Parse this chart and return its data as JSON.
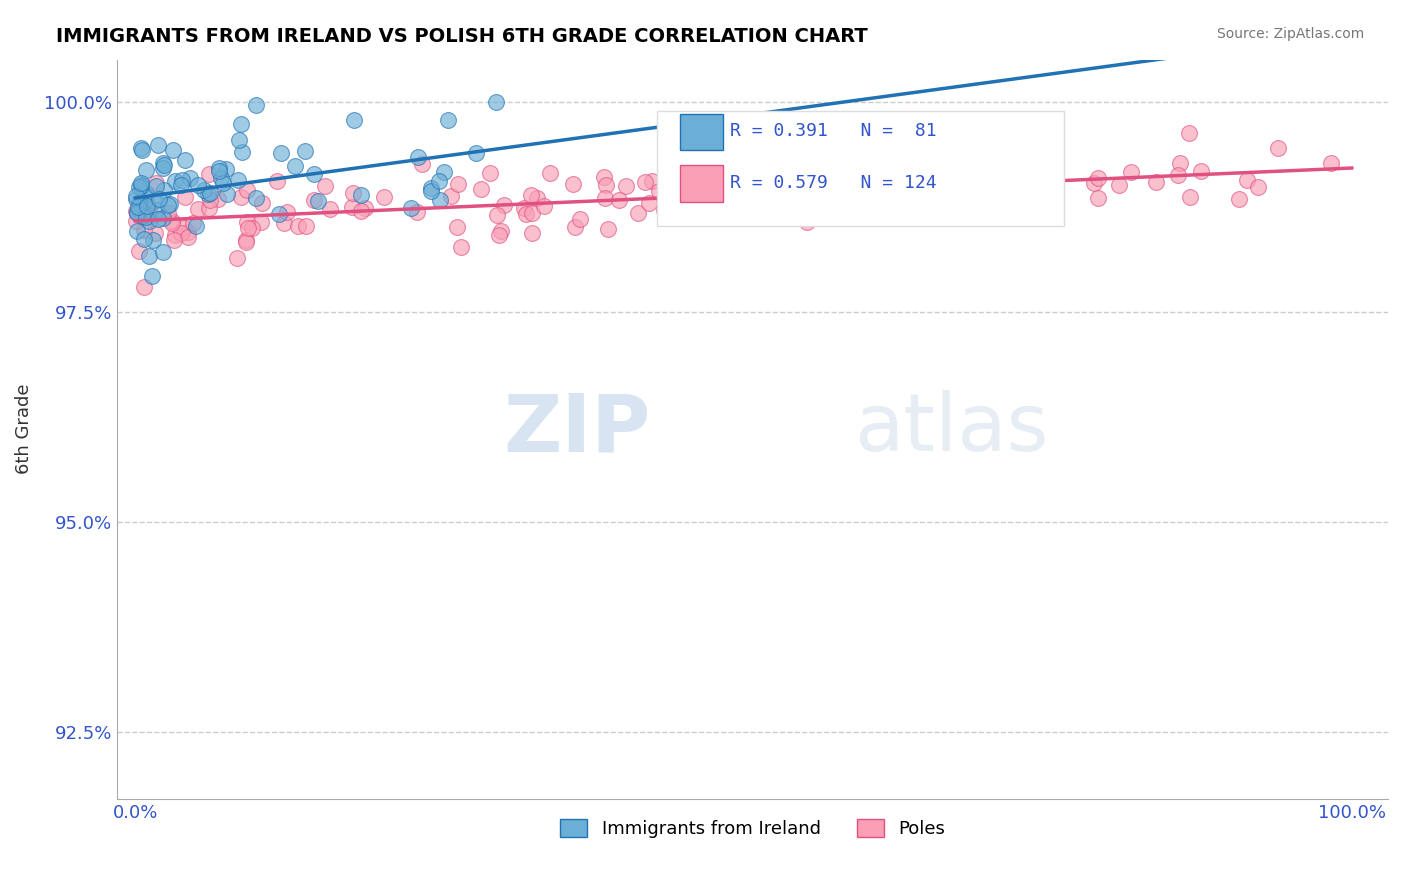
{
  "title": "IMMIGRANTS FROM IRELAND VS POLISH 6TH GRADE CORRELATION CHART",
  "source": "Source: ZipAtlas.com",
  "ylabel": "6th Grade",
  "xmin": 0.0,
  "xmax": 1.0,
  "ymin": 0.917,
  "ymax": 1.005,
  "yticks": [
    0.925,
    0.95,
    0.975,
    1.0
  ],
  "ytick_labels": [
    "92.5%",
    "95.0%",
    "97.5%",
    "100.0%"
  ],
  "watermark_ZIP": "ZIP",
  "watermark_atlas": "atlas",
  "legend_R_blue": "R = 0.391",
  "legend_N_blue": "N =  81",
  "legend_R_pink": "R = 0.579",
  "legend_N_pink": "N = 124",
  "blue_color": "#6baed6",
  "pink_color": "#fa9fb5",
  "blue_line_color": "#2171b5",
  "pink_line_color": "#e05080",
  "label_blue": "Immigrants from Ireland",
  "label_pink": "Poles"
}
